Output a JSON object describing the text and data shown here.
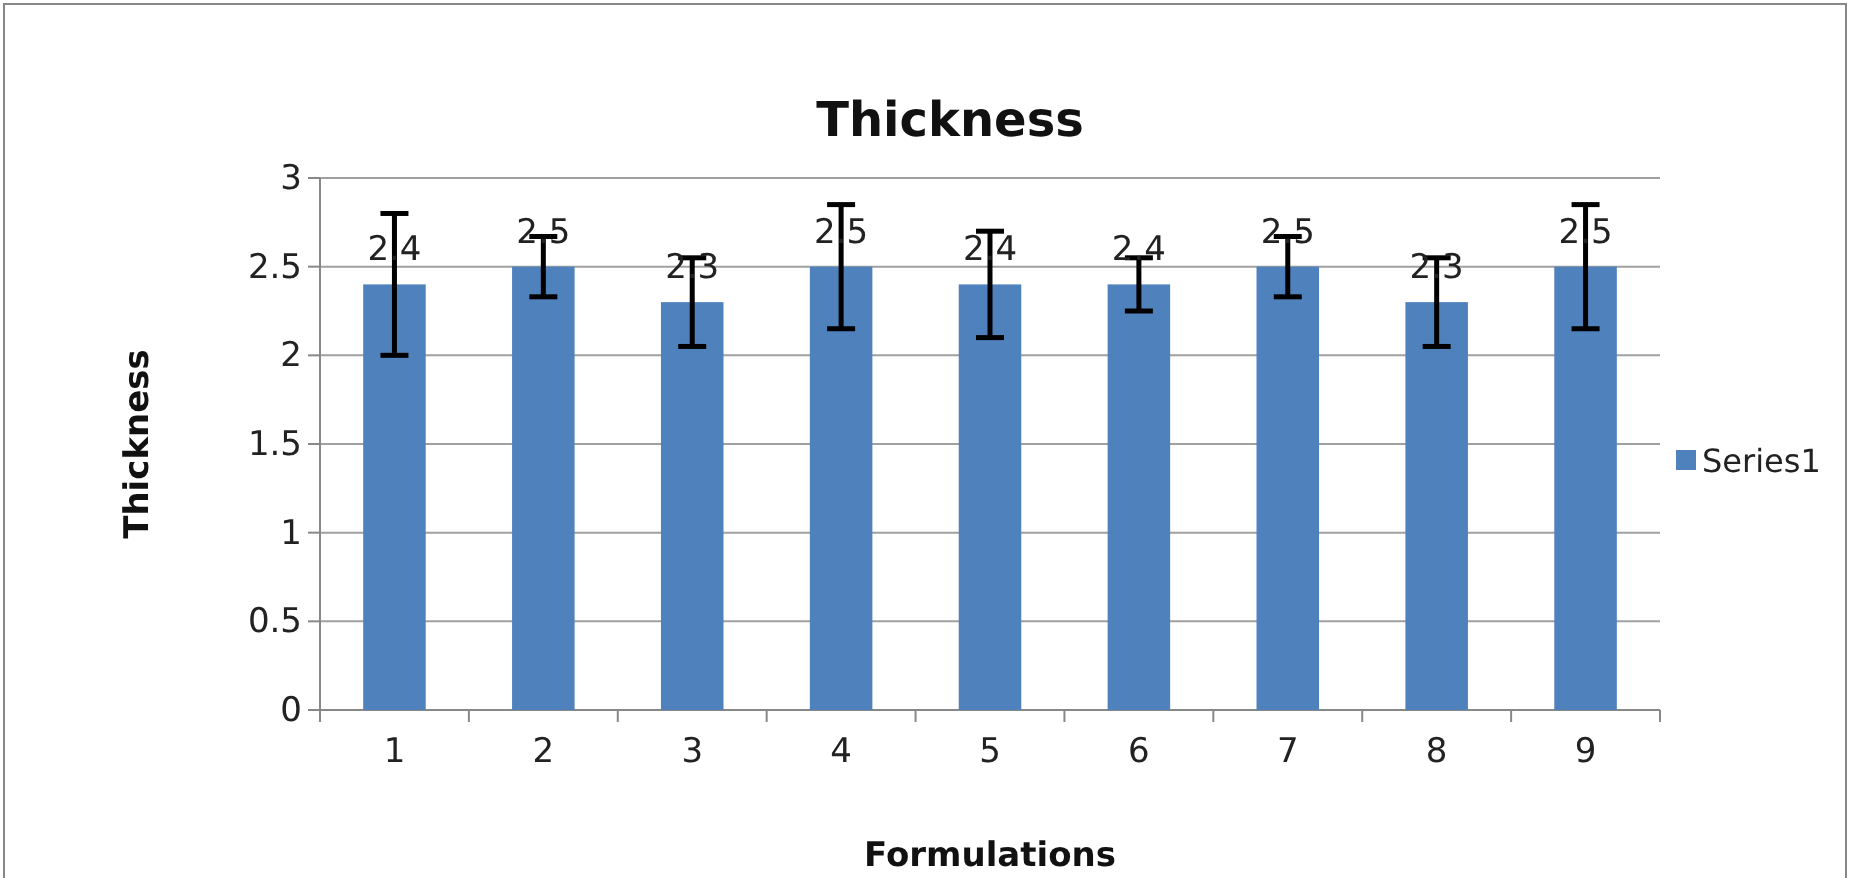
{
  "chart_data": {
    "type": "bar",
    "title": "Thickness",
    "xlabel": "Formulations",
    "ylabel": "Thickness",
    "categories": [
      "1",
      "2",
      "3",
      "4",
      "5",
      "6",
      "7",
      "8",
      "9"
    ],
    "series": [
      {
        "name": "Series1",
        "color": "#4f81bd",
        "values": [
          2.4,
          2.5,
          2.3,
          2.5,
          2.4,
          2.4,
          2.5,
          2.3,
          2.5
        ],
        "errors": [
          0.4,
          0.17,
          0.25,
          0.35,
          0.3,
          0.15,
          0.17,
          0.25,
          0.35
        ]
      }
    ],
    "data_labels": true,
    "ylim": [
      0,
      3
    ],
    "yticks": [
      0,
      0.5,
      1,
      1.5,
      2,
      2.5,
      3
    ],
    "grid": "y",
    "legend": "right"
  }
}
